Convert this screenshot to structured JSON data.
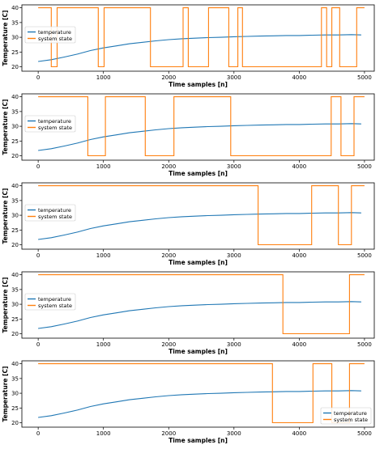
{
  "figure": {
    "panel_count": 5
  },
  "chart_data": [
    {
      "type": "line",
      "xlabel": "Time samples [n]",
      "ylabel": "Temperature [C]",
      "xlim": [
        -250,
        5150
      ],
      "ylim": [
        18.5,
        41
      ],
      "xticks": [
        0,
        1000,
        2000,
        3000,
        4000,
        5000
      ],
      "yticks": [
        20,
        25,
        30,
        35,
        40
      ],
      "legend": {
        "position": "center-left",
        "entries": [
          "temperature",
          "system state"
        ]
      },
      "series": [
        {
          "name": "temperature",
          "color": "#1f77b4",
          "x": [
            0,
            200,
            400,
            600,
            800,
            1000,
            1200,
            1400,
            1600,
            1800,
            2000,
            2200,
            2400,
            2600,
            2800,
            3000,
            3200,
            3400,
            3600,
            3800,
            4000,
            4200,
            4400,
            4600,
            4800,
            4950
          ],
          "values": [
            21.8,
            22.4,
            23.3,
            24.3,
            25.5,
            26.4,
            27.1,
            27.8,
            28.3,
            28.8,
            29.2,
            29.5,
            29.7,
            29.9,
            30.0,
            30.2,
            30.3,
            30.4,
            30.5,
            30.6,
            30.6,
            30.7,
            30.8,
            30.8,
            30.9,
            30.8
          ]
        },
        {
          "name": "system state",
          "color": "#ff7f0e",
          "x": [
            0,
            200,
            200,
            290,
            290,
            920,
            920,
            1010,
            1010,
            1720,
            1720,
            2220,
            2220,
            2300,
            2300,
            2610,
            2610,
            2920,
            2920,
            3060,
            3060,
            3130,
            3130,
            3180,
            3180,
            4340,
            4340,
            4420,
            4420,
            4500,
            4500,
            4620,
            4620,
            4700,
            4700,
            4880,
            4880,
            5000
          ],
          "values": [
            40,
            40,
            20,
            20,
            40,
            40,
            20,
            20,
            40,
            40,
            20,
            20,
            40,
            40,
            20,
            20,
            40,
            40,
            20,
            20,
            40,
            40,
            20,
            20,
            20,
            20,
            40,
            40,
            20,
            20,
            40,
            40,
            20,
            20,
            20,
            20,
            40,
            40
          ]
        }
      ]
    },
    {
      "type": "line",
      "xlabel": "Time samples [n]",
      "ylabel": "Temperature [C]",
      "xlim": [
        -250,
        5150
      ],
      "ylim": [
        18.5,
        41
      ],
      "xticks": [
        0,
        1000,
        2000,
        3000,
        4000,
        5000
      ],
      "yticks": [
        20,
        25,
        30,
        35,
        40
      ],
      "legend": {
        "position": "center-left",
        "entries": [
          "temperature",
          "system state"
        ]
      },
      "series": [
        {
          "name": "temperature",
          "color": "#1f77b4",
          "x": [
            0,
            200,
            400,
            600,
            800,
            1000,
            1200,
            1400,
            1600,
            1800,
            2000,
            2200,
            2400,
            2600,
            2800,
            3000,
            3200,
            3400,
            3600,
            3800,
            4000,
            4200,
            4400,
            4600,
            4800,
            4950
          ],
          "values": [
            21.8,
            22.4,
            23.3,
            24.3,
            25.5,
            26.4,
            27.1,
            27.8,
            28.3,
            28.8,
            29.2,
            29.5,
            29.7,
            29.9,
            30.0,
            30.2,
            30.3,
            30.4,
            30.5,
            30.6,
            30.6,
            30.7,
            30.8,
            30.8,
            30.9,
            30.8
          ]
        },
        {
          "name": "system state",
          "color": "#ff7f0e",
          "x": [
            0,
            760,
            760,
            1030,
            1030,
            1640,
            1640,
            2080,
            2080,
            2950,
            2950,
            4490,
            4490,
            4640,
            4640,
            4840,
            4840,
            5000
          ],
          "values": [
            40,
            40,
            20,
            20,
            40,
            40,
            20,
            20,
            40,
            40,
            20,
            20,
            40,
            40,
            20,
            20,
            40,
            40
          ]
        }
      ]
    },
    {
      "type": "line",
      "xlabel": "Time samples [n]",
      "ylabel": "Temperature [C]",
      "xlim": [
        -250,
        5150
      ],
      "ylim": [
        18.5,
        41
      ],
      "xticks": [
        0,
        1000,
        2000,
        3000,
        4000,
        5000
      ],
      "yticks": [
        20,
        25,
        30,
        35,
        40
      ],
      "legend": {
        "position": "center-left",
        "entries": [
          "temperature",
          "system state"
        ]
      },
      "series": [
        {
          "name": "temperature",
          "color": "#1f77b4",
          "x": [
            0,
            200,
            400,
            600,
            800,
            1000,
            1200,
            1400,
            1600,
            1800,
            2000,
            2200,
            2400,
            2600,
            2800,
            3000,
            3200,
            3400,
            3600,
            3800,
            4000,
            4200,
            4400,
            4600,
            4800,
            4950
          ],
          "values": [
            21.8,
            22.4,
            23.3,
            24.3,
            25.5,
            26.4,
            27.1,
            27.8,
            28.3,
            28.8,
            29.2,
            29.5,
            29.7,
            29.9,
            30.0,
            30.2,
            30.3,
            30.4,
            30.5,
            30.6,
            30.6,
            30.7,
            30.8,
            30.8,
            30.9,
            30.8
          ]
        },
        {
          "name": "system state",
          "color": "#ff7f0e",
          "x": [
            0,
            3370,
            3370,
            4190,
            4190,
            4600,
            4600,
            4800,
            4800,
            5000
          ],
          "values": [
            40,
            40,
            20,
            20,
            40,
            40,
            20,
            20,
            40,
            40
          ]
        }
      ]
    },
    {
      "type": "line",
      "xlabel": "Time samples [n]",
      "ylabel": "Temperature [C]",
      "xlim": [
        -250,
        5150
      ],
      "ylim": [
        18.5,
        41
      ],
      "xticks": [
        0,
        1000,
        2000,
        3000,
        4000,
        5000
      ],
      "yticks": [
        20,
        25,
        30,
        35,
        40
      ],
      "legend": {
        "position": "center-left",
        "entries": [
          "temperature",
          "system state"
        ]
      },
      "series": [
        {
          "name": "temperature",
          "color": "#1f77b4",
          "x": [
            0,
            200,
            400,
            600,
            800,
            1000,
            1200,
            1400,
            1600,
            1800,
            2000,
            2200,
            2400,
            2600,
            2800,
            3000,
            3200,
            3400,
            3600,
            3800,
            4000,
            4200,
            4400,
            4600,
            4800,
            4950
          ],
          "values": [
            21.8,
            22.4,
            23.3,
            24.3,
            25.5,
            26.4,
            27.1,
            27.8,
            28.3,
            28.8,
            29.2,
            29.5,
            29.7,
            29.9,
            30.0,
            30.2,
            30.3,
            30.4,
            30.5,
            30.6,
            30.6,
            30.7,
            30.8,
            30.8,
            30.9,
            30.8
          ]
        },
        {
          "name": "system state",
          "color": "#ff7f0e",
          "x": [
            0,
            3750,
            3750,
            4770,
            4770,
            5000
          ],
          "values": [
            40,
            40,
            20,
            20,
            40,
            40
          ]
        }
      ]
    },
    {
      "type": "line",
      "xlabel": "Time samples [n]",
      "ylabel": "Temperature [C]",
      "xlim": [
        -250,
        5150
      ],
      "ylim": [
        18.5,
        41
      ],
      "xticks": [
        0,
        1000,
        2000,
        3000,
        4000,
        5000
      ],
      "yticks": [
        20,
        25,
        30,
        35,
        40
      ],
      "legend": {
        "position": "bottom-right",
        "entries": [
          "temperature",
          "system state"
        ]
      },
      "series": [
        {
          "name": "temperature",
          "color": "#1f77b4",
          "x": [
            0,
            200,
            400,
            600,
            800,
            1000,
            1200,
            1400,
            1600,
            1800,
            2000,
            2200,
            2400,
            2600,
            2800,
            3000,
            3200,
            3400,
            3600,
            3800,
            4000,
            4200,
            4400,
            4600,
            4800,
            4950
          ],
          "values": [
            21.8,
            22.4,
            23.3,
            24.3,
            25.5,
            26.4,
            27.1,
            27.8,
            28.3,
            28.8,
            29.2,
            29.5,
            29.7,
            29.9,
            30.0,
            30.2,
            30.3,
            30.4,
            30.5,
            30.6,
            30.6,
            30.7,
            30.8,
            30.8,
            30.9,
            30.8
          ]
        },
        {
          "name": "system state",
          "color": "#ff7f0e",
          "x": [
            0,
            3590,
            3590,
            4210,
            4210,
            4500,
            4500,
            4770,
            4770,
            5000
          ],
          "values": [
            40,
            40,
            20,
            20,
            40,
            40,
            20,
            20,
            40,
            40
          ]
        }
      ]
    }
  ]
}
